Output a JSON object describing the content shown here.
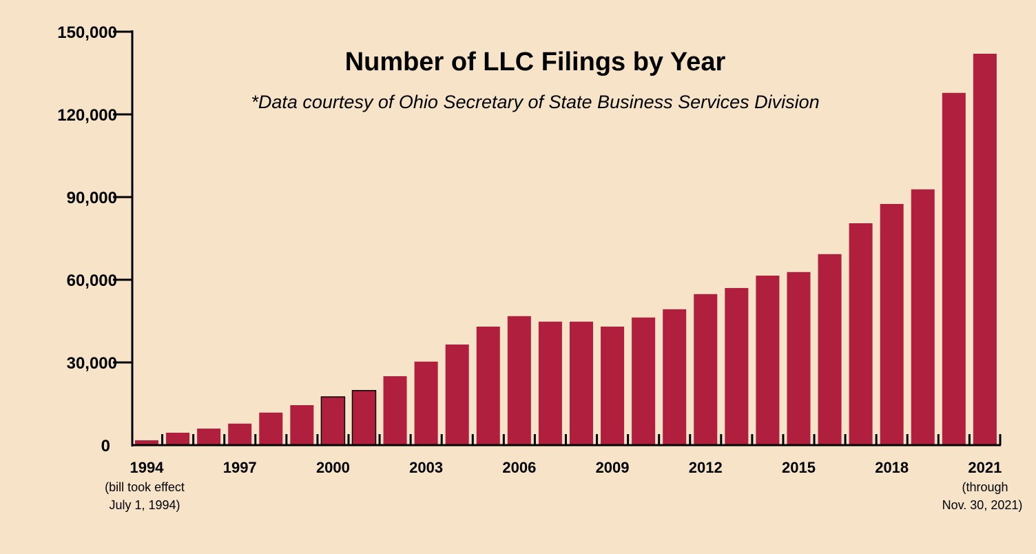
{
  "chart_data": {
    "type": "bar",
    "title": "Number of LLC Filings by Year",
    "subtitle": "*Data courtesy of Ohio Secretary of State Business Services Division",
    "xlabel": "",
    "ylabel": "",
    "ylim": [
      0,
      150000
    ],
    "yticks": [
      "0",
      "30,000",
      "60,000",
      "90,000",
      "120,000",
      "150,000"
    ],
    "grid": false,
    "bar_color": "#B0203E",
    "background": "#F6E3C8",
    "categories": [
      "1994",
      "1995",
      "1996",
      "1997",
      "1998",
      "1999",
      "2000",
      "2001",
      "2002",
      "2003",
      "2004",
      "2005",
      "2006",
      "2007",
      "2008",
      "2009",
      "2010",
      "2011",
      "2012",
      "2013",
      "2014",
      "2015",
      "2016",
      "2017",
      "2018",
      "2019",
      "2020",
      "2021"
    ],
    "values": [
      1750,
      4500,
      6000,
      7800,
      11800,
      14500,
      17500,
      19800,
      25000,
      30300,
      36500,
      43000,
      46800,
      44800,
      44800,
      43000,
      46300,
      49300,
      54800,
      57000,
      61500,
      62800,
      69300,
      80500,
      87500,
      92800,
      127800,
      142000
    ],
    "xtick_labels": [
      "1994",
      "1997",
      "2000",
      "2003",
      "2006",
      "2009",
      "2012",
      "2015",
      "2018",
      "2021"
    ],
    "annotations": {
      "first": [
        "(bill took effect",
        "July 1, 1994)"
      ],
      "last": [
        "(through",
        "Nov. 30, 2021)"
      ]
    }
  }
}
